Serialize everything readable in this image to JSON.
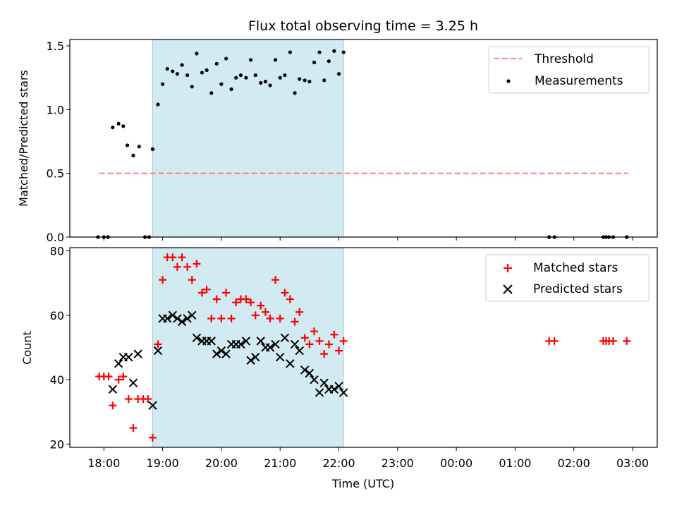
{
  "chart_data": [
    {
      "type": "scatter",
      "title": "Flux total observing time = 3.25 h",
      "xlabel": "",
      "ylabel": "Matched/Predicted stars",
      "xlim": [
        17.42,
        27.42
      ],
      "ylim": [
        0,
        1.55
      ],
      "yticks": [
        0.0,
        0.5,
        1.0,
        1.5
      ],
      "ytick_labels": [
        "0.0",
        "0.5",
        "1.0",
        "1.5"
      ],
      "shaded_region": {
        "x_start": 18.83,
        "x_end": 22.08,
        "color": "#add8e6"
      },
      "threshold": {
        "name": "Threshold",
        "y": 0.5,
        "x_start": 17.92,
        "x_end": 26.92,
        "color": "#ff7f7f",
        "style": "dashed"
      },
      "legend": {
        "location": "upper right",
        "entries": [
          "Threshold",
          "Measurements"
        ]
      },
      "series": [
        {
          "name": "Measurements",
          "marker": "dot",
          "color": "#000000",
          "points": [
            [
              17.9,
              0
            ],
            [
              18.0,
              0
            ],
            [
              18.07,
              0
            ],
            [
              18.15,
              0.86
            ],
            [
              18.25,
              0.89
            ],
            [
              18.33,
              0.87
            ],
            [
              18.4,
              0.72
            ],
            [
              18.5,
              0.64
            ],
            [
              18.6,
              0.71
            ],
            [
              18.7,
              0
            ],
            [
              18.77,
              0
            ],
            [
              18.83,
              0.69
            ],
            [
              18.92,
              1.04
            ],
            [
              19.0,
              1.2
            ],
            [
              19.08,
              1.32
            ],
            [
              19.17,
              1.3
            ],
            [
              19.25,
              1.28
            ],
            [
              19.33,
              1.35
            ],
            [
              19.42,
              1.27
            ],
            [
              19.5,
              1.18
            ],
            [
              19.58,
              1.44
            ],
            [
              19.67,
              1.29
            ],
            [
              19.75,
              1.31
            ],
            [
              19.83,
              1.13
            ],
            [
              19.92,
              1.36
            ],
            [
              20.0,
              1.2
            ],
            [
              20.08,
              1.4
            ],
            [
              20.17,
              1.16
            ],
            [
              20.25,
              1.25
            ],
            [
              20.33,
              1.27
            ],
            [
              20.42,
              1.25
            ],
            [
              20.5,
              1.39
            ],
            [
              20.58,
              1.27
            ],
            [
              20.67,
              1.21
            ],
            [
              20.75,
              1.22
            ],
            [
              20.83,
              1.19
            ],
            [
              20.92,
              1.39
            ],
            [
              21.0,
              1.25
            ],
            [
              21.08,
              1.27
            ],
            [
              21.17,
              1.45
            ],
            [
              21.25,
              1.13
            ],
            [
              21.33,
              1.24
            ],
            [
              21.42,
              1.23
            ],
            [
              21.5,
              1.22
            ],
            [
              21.58,
              1.37
            ],
            [
              21.67,
              1.45
            ],
            [
              21.75,
              1.23
            ],
            [
              21.83,
              1.38
            ],
            [
              21.92,
              1.46
            ],
            [
              22.0,
              1.28
            ],
            [
              22.08,
              1.45
            ],
            [
              25.58,
              0
            ],
            [
              25.67,
              0
            ],
            [
              26.5,
              0
            ],
            [
              26.55,
              0
            ],
            [
              26.6,
              0
            ],
            [
              26.67,
              0
            ],
            [
              26.9,
              0
            ]
          ]
        }
      ]
    },
    {
      "type": "scatter",
      "title": "",
      "xlabel": "Time (UTC)",
      "ylabel": "Count",
      "xlim": [
        17.42,
        27.42
      ],
      "ylim": [
        19,
        81
      ],
      "yticks": [
        20,
        40,
        60,
        80
      ],
      "ytick_labels": [
        "20",
        "40",
        "60",
        "80"
      ],
      "xticks": [
        18,
        19,
        20,
        21,
        22,
        23,
        24,
        25,
        26,
        27
      ],
      "xtick_labels": [
        "18:00",
        "19:00",
        "20:00",
        "21:00",
        "22:00",
        "23:00",
        "00:00",
        "01:00",
        "02:00",
        "03:00"
      ],
      "shaded_region": {
        "x_start": 18.83,
        "x_end": 22.08,
        "color": "#add8e6"
      },
      "legend": {
        "location": "upper right",
        "entries": [
          "Matched stars",
          "Predicted stars"
        ]
      },
      "series": [
        {
          "name": "Matched stars",
          "marker": "plus",
          "color": "#ff0000",
          "points": [
            [
              17.92,
              41
            ],
            [
              18.0,
              41
            ],
            [
              18.08,
              41
            ],
            [
              18.15,
              32
            ],
            [
              18.25,
              40
            ],
            [
              18.33,
              41
            ],
            [
              18.42,
              34
            ],
            [
              18.5,
              25
            ],
            [
              18.58,
              34
            ],
            [
              18.67,
              34
            ],
            [
              18.75,
              34
            ],
            [
              18.83,
              22
            ],
            [
              18.92,
              51
            ],
            [
              19.0,
              71
            ],
            [
              19.08,
              78
            ],
            [
              19.17,
              78
            ],
            [
              19.25,
              75
            ],
            [
              19.33,
              78
            ],
            [
              19.42,
              75
            ],
            [
              19.5,
              71
            ],
            [
              19.58,
              76
            ],
            [
              19.67,
              67
            ],
            [
              19.75,
              68
            ],
            [
              19.83,
              59
            ],
            [
              19.92,
              65
            ],
            [
              20.0,
              59
            ],
            [
              20.08,
              67
            ],
            [
              20.17,
              59
            ],
            [
              20.25,
              64
            ],
            [
              20.33,
              65
            ],
            [
              20.42,
              65
            ],
            [
              20.5,
              64
            ],
            [
              20.58,
              60
            ],
            [
              20.67,
              63
            ],
            [
              20.75,
              61
            ],
            [
              20.83,
              59
            ],
            [
              20.92,
              71
            ],
            [
              21.0,
              59
            ],
            [
              21.08,
              67
            ],
            [
              21.17,
              65
            ],
            [
              21.25,
              58
            ],
            [
              21.33,
              61
            ],
            [
              21.42,
              53
            ],
            [
              21.5,
              51
            ],
            [
              21.58,
              55
            ],
            [
              21.67,
              52
            ],
            [
              21.75,
              48
            ],
            [
              21.83,
              51
            ],
            [
              21.92,
              54
            ],
            [
              22.0,
              49
            ],
            [
              22.08,
              52
            ],
            [
              25.58,
              52
            ],
            [
              25.67,
              52
            ],
            [
              26.5,
              52
            ],
            [
              26.55,
              52
            ],
            [
              26.6,
              52
            ],
            [
              26.67,
              52
            ],
            [
              26.9,
              52
            ]
          ]
        },
        {
          "name": "Predicted stars",
          "marker": "x",
          "color": "#000000",
          "points": [
            [
              18.15,
              37
            ],
            [
              18.25,
              45
            ],
            [
              18.33,
              47
            ],
            [
              18.42,
              47
            ],
            [
              18.5,
              39
            ],
            [
              18.58,
              48
            ],
            [
              18.83,
              32
            ],
            [
              18.92,
              49
            ],
            [
              19.0,
              59
            ],
            [
              19.08,
              59
            ],
            [
              19.17,
              60
            ],
            [
              19.25,
              59
            ],
            [
              19.33,
              58
            ],
            [
              19.42,
              59
            ],
            [
              19.5,
              60
            ],
            [
              19.58,
              53
            ],
            [
              19.67,
              52
            ],
            [
              19.75,
              52
            ],
            [
              19.83,
              52
            ],
            [
              19.92,
              48
            ],
            [
              20.0,
              49
            ],
            [
              20.08,
              48
            ],
            [
              20.17,
              51
            ],
            [
              20.25,
              51
            ],
            [
              20.33,
              51
            ],
            [
              20.42,
              52
            ],
            [
              20.5,
              46
            ],
            [
              20.58,
              47
            ],
            [
              20.67,
              52
            ],
            [
              20.75,
              50
            ],
            [
              20.83,
              50
            ],
            [
              20.92,
              51
            ],
            [
              21.0,
              47
            ],
            [
              21.08,
              53
            ],
            [
              21.17,
              45
            ],
            [
              21.25,
              51
            ],
            [
              21.33,
              49
            ],
            [
              21.42,
              43
            ],
            [
              21.5,
              42
            ],
            [
              21.58,
              40
            ],
            [
              21.67,
              36
            ],
            [
              21.75,
              39
            ],
            [
              21.83,
              37
            ],
            [
              21.92,
              37
            ],
            [
              22.0,
              38
            ],
            [
              22.08,
              36
            ]
          ]
        }
      ]
    }
  ]
}
